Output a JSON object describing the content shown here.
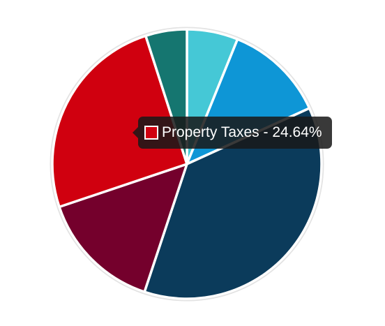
{
  "chart_data": {
    "type": "pie",
    "title": "",
    "slices": [
      {
        "label": "",
        "value": 6.0,
        "color": "#45C8D6"
      },
      {
        "label": "",
        "value": 11.8,
        "color": "#0E96D6"
      },
      {
        "label": "",
        "value": 36.1,
        "color": "#0B3B5B"
      },
      {
        "label": "",
        "value": 14.42,
        "color": "#74002C"
      },
      {
        "label": "Property Taxes",
        "value": 24.64,
        "color": "#D0000F"
      },
      {
        "label": "",
        "value": 4.85,
        "color": "#157670"
      }
    ],
    "start_angle_deg": 0,
    "direction": "clockwise",
    "legend": "none",
    "tooltip": {
      "text": "Property Taxes - 24.64%",
      "slice_label": "Property Taxes",
      "swatch_color": "#D0000F"
    }
  }
}
